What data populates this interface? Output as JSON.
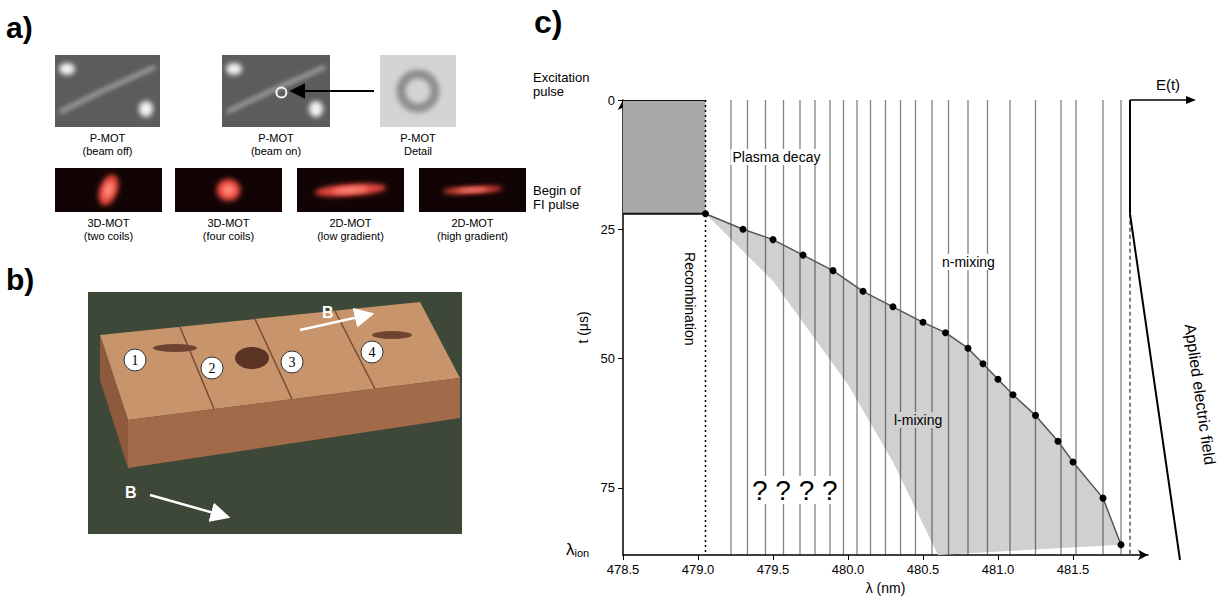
{
  "figure": {
    "a": {
      "letter": "a)",
      "top_row": [
        {
          "label": [
            "P-MOT",
            "(beam off)"
          ]
        },
        {
          "label": [
            "P-MOT",
            "(beam on)"
          ]
        },
        {
          "label": [
            "P-MOT",
            "Detail"
          ]
        }
      ],
      "bottom_row": [
        {
          "label": [
            "3D-MOT",
            "(two coils)"
          ]
        },
        {
          "label": [
            "3D-MOT",
            "(four coils)"
          ]
        },
        {
          "label": [
            "2D-MOT",
            "(low gradient)"
          ]
        },
        {
          "label": [
            "2D-MOT",
            "(high gradient)"
          ]
        }
      ]
    },
    "b": {
      "letter": "b)",
      "parts": [
        "1",
        "2",
        "3",
        "4"
      ],
      "field_label": "B"
    }
  },
  "chart_data": {
    "type": "spectrogram",
    "panel_label": "c)",
    "xlabel": "λ (nm)",
    "ylabel": "t (μs)",
    "xlim": [
      478.5,
      482.0
    ],
    "xticks": [
      478.5,
      {
        "value": 479,
        "label": "479.0"
      },
      479.5,
      {
        "value": 480,
        "label": "480.0"
      },
      480.5,
      {
        "value": 481,
        "label": "481.0"
      },
      481.5
    ],
    "ylim": [
      0,
      88
    ],
    "yticks": [
      0,
      25,
      50,
      75
    ],
    "grid": false,
    "lines_nm": [
      479.22,
      479.33,
      479.45,
      479.57,
      479.68,
      479.78,
      479.88,
      479.97,
      480.06,
      480.15,
      480.25,
      480.35,
      480.45,
      480.56,
      480.67,
      480.8,
      480.93,
      481.08,
      481.25,
      481.42,
      481.52,
      481.7,
      481.82
    ],
    "lambda_ion": 479.05,
    "lambda_ion_label": "λion",
    "plasma_decay": {
      "label": "Plasma decay",
      "x": [
        478.5,
        479.05
      ],
      "t": [
        0,
        22
      ]
    },
    "n_mixing": {
      "label": "n-mixing",
      "x": [
        479.05,
        479.3,
        479.5,
        479.7,
        479.9,
        480.1,
        480.3,
        480.5,
        480.65,
        480.8,
        480.9,
        481.0,
        481.1,
        481.25,
        481.4,
        481.5,
        481.7,
        481.82
      ],
      "t": [
        22,
        25,
        27,
        30,
        33,
        37,
        40,
        43,
        45,
        48,
        51,
        54,
        57,
        61,
        66,
        70,
        77,
        86
      ]
    },
    "l_mixing": {
      "label": "l-mixing",
      "x": [
        479.05,
        479.5,
        480.0,
        480.3,
        480.6
      ],
      "t": [
        22,
        35,
        55,
        70,
        88
      ]
    },
    "recombination_label": "Recombination",
    "unknown_label": "? ? ? ?",
    "excitation_pulse": {
      "label": [
        "Excitation",
        "pulse"
      ],
      "t": 0
    },
    "fi_pulse": {
      "label": [
        "Begin of",
        "FI pulse"
      ],
      "t": 22
    },
    "field": {
      "axis_label": "E(t)",
      "label": "Applied electric field"
    }
  }
}
